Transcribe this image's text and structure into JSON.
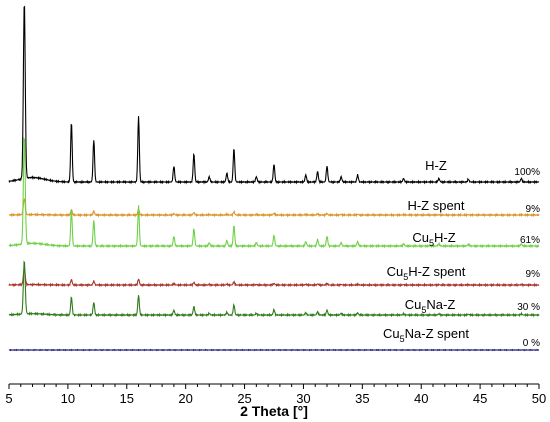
{
  "chart_data": {
    "type": "line",
    "title": "",
    "xlabel": "2 Theta [°]",
    "ylabel": "",
    "xlim": [
      5,
      50
    ],
    "xticks": [
      5,
      10,
      15,
      20,
      25,
      30,
      35,
      40,
      45,
      50
    ],
    "grid": false,
    "legend": "none",
    "peaks": [
      {
        "x": 6.3,
        "rel": 1.0
      },
      {
        "x": 10.3,
        "rel": 0.34
      },
      {
        "x": 12.2,
        "rel": 0.24
      },
      {
        "x": 16.0,
        "rel": 0.37
      },
      {
        "x": 19.0,
        "rel": 0.09
      },
      {
        "x": 20.7,
        "rel": 0.16
      },
      {
        "x": 22.0,
        "rel": 0.03
      },
      {
        "x": 23.5,
        "rel": 0.05
      },
      {
        "x": 24.1,
        "rel": 0.19
      },
      {
        "x": 26.0,
        "rel": 0.03
      },
      {
        "x": 27.5,
        "rel": 0.1
      },
      {
        "x": 30.2,
        "rel": 0.04
      },
      {
        "x": 31.2,
        "rel": 0.06
      },
      {
        "x": 32.0,
        "rel": 0.09
      },
      {
        "x": 33.2,
        "rel": 0.03
      },
      {
        "x": 34.6,
        "rel": 0.04
      },
      {
        "x": 38.5,
        "rel": 0.02
      },
      {
        "x": 41.5,
        "rel": 0.02
      },
      {
        "x": 44.0,
        "rel": 0.015
      },
      {
        "x": 48.5,
        "rel": 0.02
      }
    ],
    "series": [
      {
        "name": "H-Z",
        "name_parts": [
          {
            "t": "H-Z"
          }
        ],
        "crystallinity": "100%",
        "color": "#000000",
        "scale": 1.0
      },
      {
        "name": "H-Z spent",
        "name_parts": [
          {
            "t": "H-Z spent"
          }
        ],
        "crystallinity": "9%",
        "color": "#d9952a",
        "scale": 0.09
      },
      {
        "name": "Cu5H-Z",
        "name_parts": [
          {
            "t": "Cu"
          },
          {
            "t": "5",
            "sub": true
          },
          {
            "t": "H-Z"
          }
        ],
        "crystallinity": "61%",
        "color": "#6fd147",
        "scale": 0.61
      },
      {
        "name": "Cu5H-Z spent",
        "name_parts": [
          {
            "t": "Cu"
          },
          {
            "t": "5",
            "sub": true
          },
          {
            "t": "H-Z spent"
          }
        ],
        "crystallinity": "9%",
        "color": "#a8322a",
        "scale": 0.09
      },
      {
        "name": "Cu5Na-Z",
        "name_parts": [
          {
            "t": "Cu"
          },
          {
            "t": "5",
            "sub": true
          },
          {
            "t": "Na-Z"
          }
        ],
        "crystallinity": "30 %",
        "color": "#2f7a1a",
        "scale": 0.3
      },
      {
        "name": "Cu5Na-Z spent",
        "name_parts": [
          {
            "t": "Cu"
          },
          {
            "t": "5",
            "sub": true
          },
          {
            "t": "Na-Z spent"
          }
        ],
        "crystallinity": "0 %",
        "color": "#1e1a7a",
        "scale": 0.0
      }
    ]
  }
}
